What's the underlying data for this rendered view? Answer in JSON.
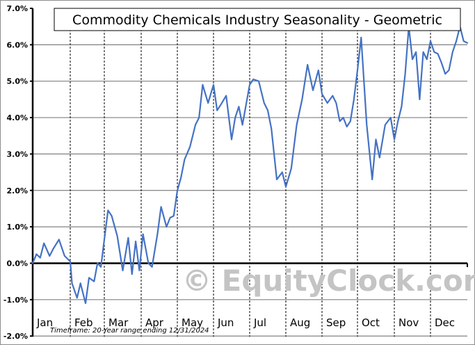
{
  "chart_data": {
    "type": "line",
    "title": "Commodity Chemicals Industry Seasonality - Geometric",
    "xlabel": "",
    "ylabel": "",
    "ylim": [
      -2.0,
      7.0
    ],
    "yticks": [
      "7.0%",
      "6.0%",
      "5.0%",
      "4.0%",
      "3.0%",
      "2.0%",
      "1.0%",
      "0.0%",
      "-1.0%",
      "-2.0%"
    ],
    "categories": [
      "Jan",
      "Feb",
      "Mar",
      "Apr",
      "May",
      "Jun",
      "Jul",
      "Aug",
      "Sep",
      "Oct",
      "Nov",
      "Dec"
    ],
    "grid": true,
    "legend": "none",
    "annotations": [
      "Timeframe: 20-Year range ending 12/31/2024",
      "© EquityClock.com"
    ],
    "series": [
      {
        "name": "Commodity Chemicals Industry Seasonality - Geometric",
        "color": "#4472c4",
        "x_month_fraction": [
          0.0,
          0.1,
          0.2,
          0.3,
          0.45,
          0.55,
          0.7,
          0.85,
          1.0,
          1.05,
          1.2,
          1.3,
          1.45,
          1.55,
          1.7,
          1.8,
          1.9,
          2.0,
          2.1,
          2.2,
          2.35,
          2.5,
          2.65,
          2.75,
          2.85,
          2.95,
          3.05,
          3.2,
          3.3,
          3.45,
          3.55,
          3.7,
          3.8,
          3.9,
          4.0,
          4.1,
          4.2,
          4.35,
          4.5,
          4.6,
          4.7,
          4.85,
          5.0,
          5.1,
          5.2,
          5.35,
          5.5,
          5.6,
          5.7,
          5.8,
          5.9,
          6.0,
          6.1,
          6.25,
          6.4,
          6.5,
          6.6,
          6.75,
          6.9,
          7.0,
          7.15,
          7.3,
          7.45,
          7.6,
          7.75,
          7.9,
          8.0,
          8.15,
          8.3,
          8.4,
          8.5,
          8.6,
          8.7,
          8.8,
          8.9,
          9.0,
          9.1,
          9.25,
          9.4,
          9.5,
          9.6,
          9.75,
          9.9,
          10.0,
          10.1,
          10.2,
          10.3,
          10.4,
          10.5,
          10.6,
          10.7,
          10.8,
          10.9,
          11.0,
          11.1,
          11.2,
          11.3,
          11.4,
          11.5,
          11.6,
          11.7,
          11.8,
          11.9,
          12.0
        ],
        "values": [
          0.0,
          0.25,
          0.15,
          0.55,
          0.2,
          0.4,
          0.65,
          0.2,
          0.05,
          -0.55,
          -0.95,
          -0.55,
          -1.1,
          -0.4,
          -0.5,
          0.0,
          -0.1,
          0.65,
          1.45,
          1.3,
          0.75,
          -0.2,
          0.7,
          -0.3,
          0.6,
          -0.2,
          0.8,
          0.0,
          -0.1,
          0.8,
          1.55,
          1.0,
          1.25,
          1.3,
          2.0,
          2.35,
          2.85,
          3.2,
          3.8,
          4.0,
          4.9,
          4.4,
          4.9,
          4.2,
          4.35,
          4.6,
          3.4,
          4.0,
          4.3,
          3.8,
          4.35,
          4.9,
          5.05,
          5.0,
          4.4,
          4.2,
          3.7,
          2.3,
          2.5,
          2.1,
          2.6,
          3.8,
          4.5,
          5.45,
          4.75,
          5.3,
          4.65,
          4.4,
          4.6,
          4.4,
          3.9,
          4.0,
          3.75,
          3.9,
          4.5,
          5.3,
          6.2,
          3.8,
          2.3,
          3.4,
          2.9,
          3.8,
          4.0,
          3.4,
          3.9,
          4.3,
          5.2,
          6.5,
          5.6,
          5.8,
          4.5,
          5.8,
          5.6,
          6.1,
          5.8,
          5.75,
          5.5,
          5.2,
          5.3,
          5.8,
          6.1,
          6.5,
          6.1,
          6.05
        ]
      }
    ]
  },
  "chart": {
    "title": "Commodity Chemicals Industry Seasonality - Geometric",
    "timeframe": "Timeframe: 20-Year range ending 12/31/2024",
    "watermark": "© EquityClock.com",
    "line_color": "#4472c4",
    "y_labels": [
      "7.0%",
      "6.0%",
      "5.0%",
      "4.0%",
      "3.0%",
      "2.0%",
      "1.0%",
      "0.0%",
      "-1.0%",
      "-2.0%"
    ],
    "x_labels": [
      "Jan",
      "Feb",
      "Mar",
      "Apr",
      "May",
      "Jun",
      "Jul",
      "Aug",
      "Sep",
      "Oct",
      "Nov",
      "Dec"
    ]
  }
}
